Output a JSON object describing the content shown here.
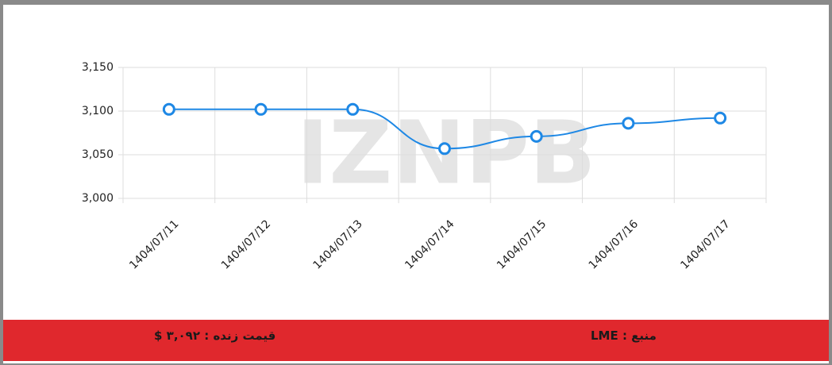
{
  "chart_data": {
    "type": "line",
    "categories": [
      "1404/07/11",
      "1404/07/12",
      "1404/07/13",
      "1404/07/14",
      "1404/07/15",
      "1404/07/16",
      "1404/07/17"
    ],
    "values": [
      3102,
      3102,
      3102,
      3057,
      3071,
      3086,
      3092
    ],
    "color": "#1e88e5",
    "ylim": [
      3000,
      3150
    ],
    "yticks": [
      {
        "value": 3000,
        "label": "3,000"
      },
      {
        "value": 3050,
        "label": "3,050"
      },
      {
        "value": 3100,
        "label": "3,100"
      },
      {
        "value": 3150,
        "label": "3,150"
      }
    ],
    "grid": true,
    "watermark": "IZNPB"
  },
  "footer": {
    "price": "قیمت زنده : ۳,۰۹۲ $",
    "source": "منبع : LME"
  }
}
